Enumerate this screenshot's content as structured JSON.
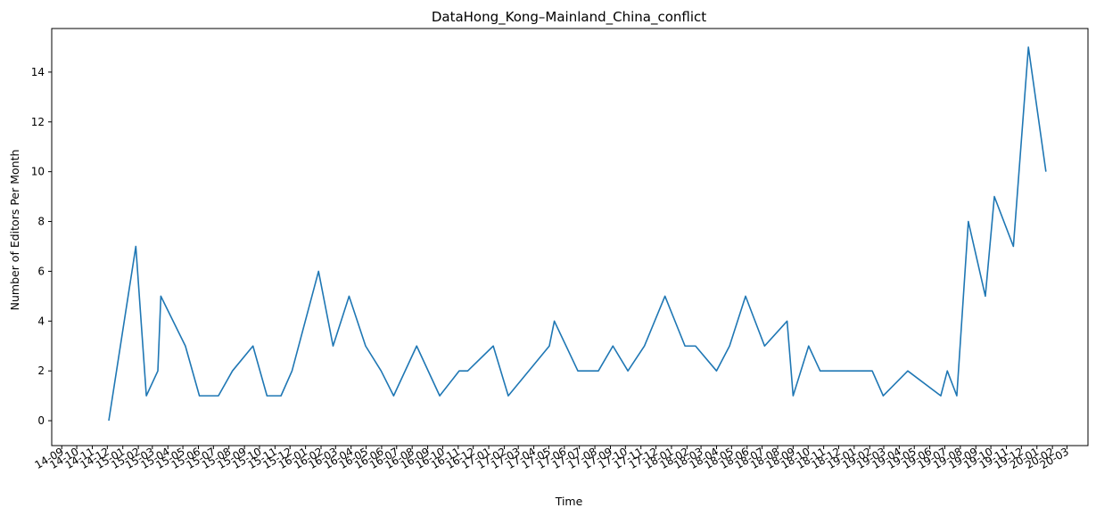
{
  "chart_data": {
    "type": "line",
    "title": "DataHong_Kong–Mainland_China_conflict",
    "xlabel": "Time",
    "ylabel": "Number of Editors Per Month",
    "ylim": [
      -1,
      15.75
    ],
    "yticks": [
      0,
      2,
      4,
      6,
      8,
      10,
      12,
      14
    ],
    "x_tick_labels": [
      "14-09",
      "14-10",
      "14-11",
      "14-12",
      "15-01",
      "15-02",
      "15-03",
      "15-04",
      "15-05",
      "15-06",
      "15-07",
      "15-08",
      "15-09",
      "15-10",
      "15-11",
      "15-12",
      "16-01",
      "16-02",
      "16-03",
      "16-04",
      "16-05",
      "16-06",
      "16-07",
      "16-08",
      "16-09",
      "16-10",
      "16-11",
      "16-12",
      "17-01",
      "17-02",
      "17-03",
      "17-04",
      "17-05",
      "17-06",
      "17-07",
      "17-08",
      "17-09",
      "17-10",
      "17-11",
      "17-12",
      "18-01",
      "18-02",
      "18-03",
      "18-04",
      "18-05",
      "18-06",
      "18-07",
      "18-08",
      "18-09",
      "18-10",
      "18-11",
      "18-12",
      "19-01",
      "19-02",
      "19-03",
      "19-04",
      "19-05",
      "19-06",
      "19-07",
      "19-08",
      "19-09",
      "19-10",
      "19-11",
      "19-12",
      "20-01",
      "20-02",
      "20-03"
    ],
    "grid": false,
    "series": [
      {
        "color": "#1f77b4",
        "points": [
          {
            "x": "2014-12-04",
            "y": 0
          },
          {
            "x": "2015-01-27",
            "y": 7
          },
          {
            "x": "2015-02-17",
            "y": 1
          },
          {
            "x": "2015-03-12",
            "y": 2
          },
          {
            "x": "2015-03-18",
            "y": 5
          },
          {
            "x": "2015-05-06",
            "y": 3
          },
          {
            "x": "2015-06-03",
            "y": 1
          },
          {
            "x": "2015-07-11",
            "y": 1
          },
          {
            "x": "2015-08-08",
            "y": 2
          },
          {
            "x": "2015-09-18",
            "y": 3
          },
          {
            "x": "2015-10-16",
            "y": 1
          },
          {
            "x": "2015-11-13",
            "y": 1
          },
          {
            "x": "2015-12-05",
            "y": 2
          },
          {
            "x": "2016-01-27",
            "y": 6
          },
          {
            "x": "2016-02-25",
            "y": 3
          },
          {
            "x": "2016-03-28",
            "y": 5
          },
          {
            "x": "2016-04-30",
            "y": 3
          },
          {
            "x": "2016-05-31",
            "y": 2
          },
          {
            "x": "2016-06-25",
            "y": 1
          },
          {
            "x": "2016-08-10",
            "y": 3
          },
          {
            "x": "2016-09-25",
            "y": 1
          },
          {
            "x": "2016-11-03",
            "y": 2
          },
          {
            "x": "2016-11-20",
            "y": 2
          },
          {
            "x": "2017-01-10",
            "y": 3
          },
          {
            "x": "2017-02-09",
            "y": 1
          },
          {
            "x": "2017-05-02",
            "y": 3
          },
          {
            "x": "2017-05-12",
            "y": 4
          },
          {
            "x": "2017-06-28",
            "y": 2
          },
          {
            "x": "2017-08-08",
            "y": 2
          },
          {
            "x": "2017-09-06",
            "y": 3
          },
          {
            "x": "2017-10-06",
            "y": 2
          },
          {
            "x": "2017-11-08",
            "y": 3
          },
          {
            "x": "2017-12-19",
            "y": 5
          },
          {
            "x": "2018-01-28",
            "y": 3
          },
          {
            "x": "2018-02-18",
            "y": 3
          },
          {
            "x": "2018-04-01",
            "y": 2
          },
          {
            "x": "2018-04-27",
            "y": 3
          },
          {
            "x": "2018-05-29",
            "y": 5
          },
          {
            "x": "2018-07-06",
            "y": 3
          },
          {
            "x": "2018-08-20",
            "y": 4
          },
          {
            "x": "2018-09-01",
            "y": 1
          },
          {
            "x": "2018-10-02",
            "y": 3
          },
          {
            "x": "2018-10-25",
            "y": 2
          },
          {
            "x": "2019-02-06",
            "y": 2
          },
          {
            "x": "2019-02-28",
            "y": 1
          },
          {
            "x": "2019-04-18",
            "y": 2
          },
          {
            "x": "2019-06-23",
            "y": 1
          },
          {
            "x": "2019-07-06",
            "y": 2
          },
          {
            "x": "2019-07-25",
            "y": 1
          },
          {
            "x": "2019-08-17",
            "y": 8
          },
          {
            "x": "2019-09-20",
            "y": 5
          },
          {
            "x": "2019-10-08",
            "y": 9
          },
          {
            "x": "2019-11-15",
            "y": 7
          },
          {
            "x": "2019-12-15",
            "y": 15
          },
          {
            "x": "2020-01-19",
            "y": 10
          }
        ]
      }
    ]
  }
}
